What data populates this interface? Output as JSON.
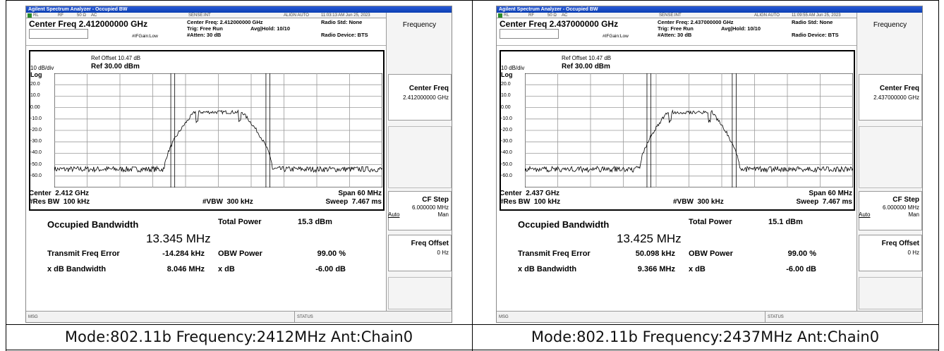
{
  "panels": [
    {
      "window_title": "Agilent Spectrum Analyzer - Occupied BW",
      "status": [
        "RL",
        "RF",
        "50 Ω",
        "AC",
        "SENSE:INT",
        "ALIGN AUTO",
        "11:03:13 AM Jun 25, 2023"
      ],
      "center_freq_heading": "Center Freq 2.412000000 GHz",
      "settings": [
        "Center Freq: 2.412000000 GHz",
        "Trig: Free Run",
        "Avg|Hold: 10/10",
        "#Atten: 30 dB",
        "#IFGain:Low"
      ],
      "radio": [
        "Radio Std: None",
        "Radio Device: BTS"
      ],
      "ref_offset": "Ref Offset 10.47 dB",
      "scale": "10 dB/div",
      "ref_level": "Ref 30.00 dBm",
      "log": "Log",
      "y_labels": [
        "20.0",
        "10.0",
        "0.00",
        "-10.0",
        "-20.0",
        "-30.0",
        "-40.0",
        "-50.0",
        "-60.0"
      ],
      "center": "Center  2.412 GHz",
      "span": "Span 60 MHz",
      "res_bw": "#Res BW  100 kHz",
      "vbw": "#VBW  300 kHz",
      "sweep": "Sweep  7.467 ms",
      "results": {
        "obw_label": "Occupied Bandwidth",
        "obw_value": "13.345 MHz",
        "total_power_label": "Total Power",
        "total_power": "15.3 dBm",
        "rows": [
          [
            "Transmit Freq Error",
            "-14.284 kHz",
            "OBW Power",
            "99.00 %"
          ],
          [
            "x dB Bandwidth",
            "8.046 MHz",
            "x dB",
            "-6.00 dB"
          ]
        ]
      },
      "msg": "MSG",
      "status_label": "STATUS",
      "softkeys": {
        "menu": "Frequency",
        "center_freq": "Center Freq",
        "center_freq_value": "2.412000000 GHz",
        "cf_step": "CF Step",
        "cf_step_value": "6.000000 MHz",
        "auto": "Auto",
        "man": "Man",
        "freq_offset": "Freq Offset",
        "freq_offset_value": "0 Hz"
      },
      "caption": "Mode:802.11b Frequency:2412MHz Ant:Chain0"
    },
    {
      "window_title": "Agilent Spectrum Analyzer - Occupied BW",
      "status": [
        "RL",
        "RF",
        "50 Ω",
        "AC",
        "SENSE:INT",
        "ALIGN AUTO",
        "11:09:55 AM Jun 25, 2023"
      ],
      "center_freq_heading": "Center Freq 2.437000000 GHz",
      "settings": [
        "Center Freq: 2.437000000 GHz",
        "Trig: Free Run",
        "Avg|Hold: 10/10",
        "#Atten: 30 dB",
        "#IFGain:Low"
      ],
      "radio": [
        "Radio Std: None",
        "Radio Device: BTS"
      ],
      "ref_offset": "Ref Offset 10.47 dB",
      "scale": "10 dB/div",
      "ref_level": "Ref 30.00 dBm",
      "log": "Log",
      "y_labels": [
        "20.0",
        "10.0",
        "0.00",
        "-10.0",
        "-20.0",
        "-30.0",
        "-40.0",
        "-50.0",
        "-60.0"
      ],
      "center": "Center  2.437 GHz",
      "span": "Span 60 MHz",
      "res_bw": "#Res BW  100 kHz",
      "vbw": "#VBW  300 kHz",
      "sweep": "Sweep  7.467 ms",
      "results": {
        "obw_label": "Occupied Bandwidth",
        "obw_value": "13.425 MHz",
        "total_power_label": "Total Power",
        "total_power": "15.1 dBm",
        "rows": [
          [
            "Transmit Freq Error",
            "50.098 kHz",
            "OBW Power",
            "99.00 %"
          ],
          [
            "x dB Bandwidth",
            "9.366 MHz",
            "x dB",
            "-6.00 dB"
          ]
        ]
      },
      "msg": "MSG",
      "status_label": "STATUS",
      "softkeys": {
        "menu": "Frequency",
        "center_freq": "Center Freq",
        "center_freq_value": "2.437000000 GHz",
        "cf_step": "CF Step",
        "cf_step_value": "6.000000 MHz",
        "auto": "Auto",
        "man": "Man",
        "freq_offset": "Freq Offset",
        "freq_offset_value": "0 Hz"
      },
      "caption": "Mode:802.11b Frequency:2437MHz Ant:Chain0"
    }
  ]
}
